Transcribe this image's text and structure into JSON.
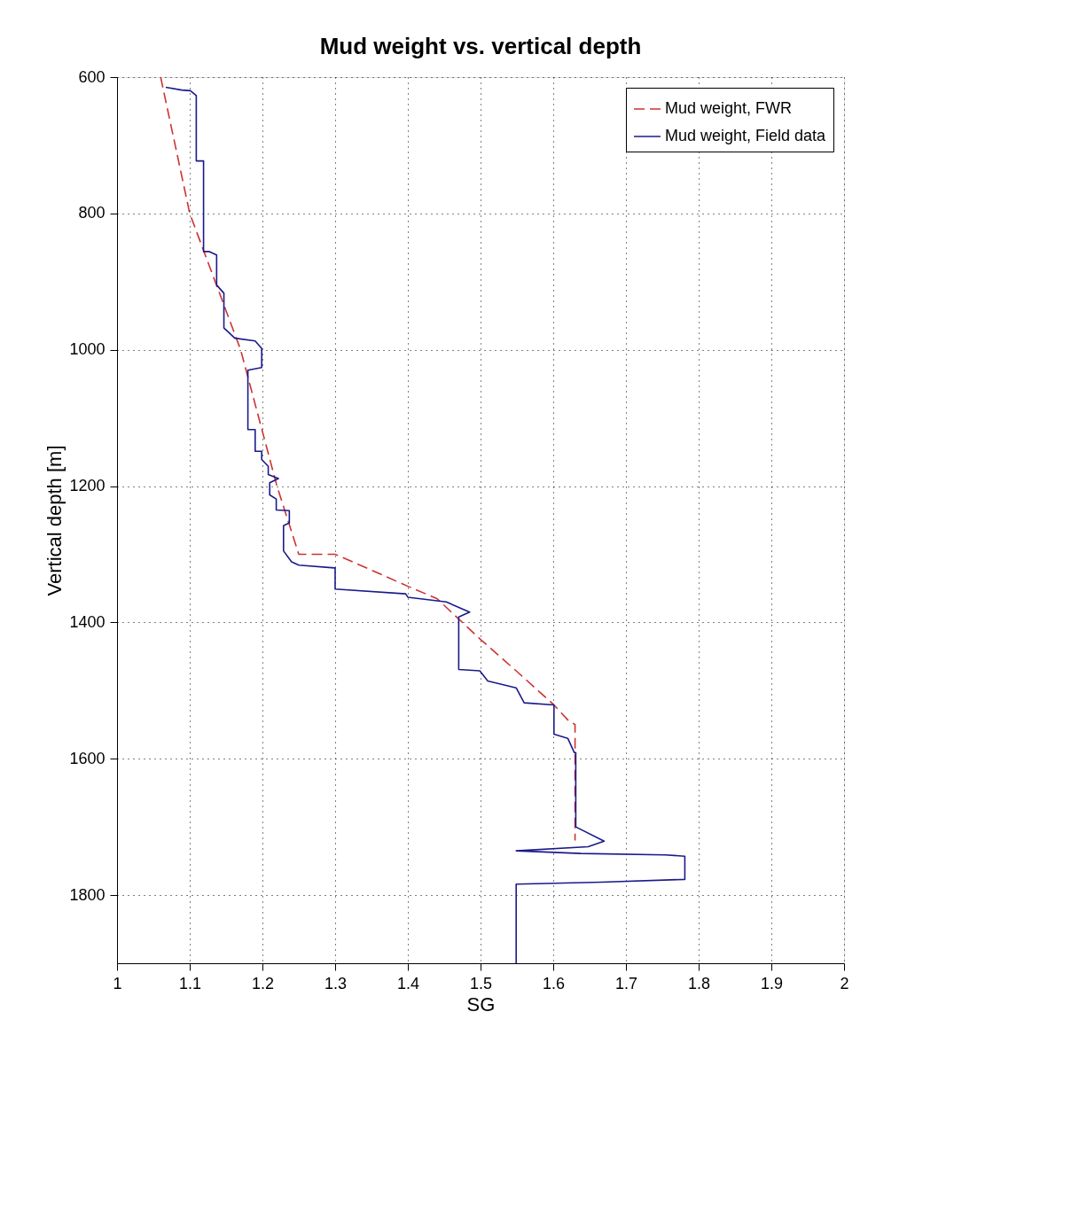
{
  "chart_data": {
    "type": "line",
    "title": "Mud weight vs. vertical depth",
    "xlabel": "SG",
    "ylabel": "Vertical depth [m]",
    "xlim": [
      1,
      2
    ],
    "xticks": [
      1,
      1.1,
      1.2,
      1.3,
      1.4,
      1.5,
      1.6,
      1.7,
      1.8,
      1.9,
      2
    ],
    "ylim": [
      1900,
      600
    ],
    "yticks": [
      600,
      800,
      1000,
      1200,
      1400,
      1600,
      1800
    ],
    "grid": true,
    "legend": "top right",
    "series": [
      {
        "name": "Mud weight, FWR",
        "color": "#cc3333",
        "line_style": "dashed",
        "x": [
          1.06,
          1.1,
          1.17,
          1.22,
          1.25,
          1.3,
          1.36,
          1.4,
          1.44,
          1.5,
          1.55,
          1.6,
          1.62,
          1.63,
          1.63
        ],
        "values": [
          600,
          800,
          1000,
          1200,
          1300,
          1300,
          1328,
          1347,
          1365,
          1425,
          1472,
          1520,
          1543,
          1550,
          1720
        ]
      },
      {
        "name": "Mud weight, Field data",
        "color": "#1a1a8c",
        "line_style": "solid",
        "x": [
          1.067,
          1.089,
          1.101,
          1.109,
          1.109,
          1.119,
          1.119,
          1.127,
          1.137,
          1.137,
          1.147,
          1.147,
          1.162,
          1.19,
          1.199,
          1.199,
          1.18,
          1.18,
          1.19,
          1.19,
          1.199,
          1.199,
          1.208,
          1.208,
          1.222,
          1.21,
          1.21,
          1.219,
          1.219,
          1.237,
          1.237,
          1.229,
          1.229,
          1.24,
          1.25,
          1.299,
          1.3,
          1.3,
          1.397,
          1.4,
          1.453,
          1.485,
          1.47,
          1.47,
          1.499,
          1.51,
          1.549,
          1.56,
          1.601,
          1.601,
          1.62,
          1.629,
          1.631,
          1.631,
          1.67,
          1.648,
          1.549,
          1.638,
          1.754,
          1.781,
          1.781,
          1.666,
          1.549,
          1.549
        ],
        "values": [
          615,
          619,
          620,
          627,
          723,
          723,
          856,
          856,
          861,
          905,
          917,
          968,
          983,
          987,
          998,
          1026,
          1030,
          1117,
          1117,
          1149,
          1149,
          1161,
          1171,
          1183,
          1189,
          1195,
          1213,
          1219,
          1235,
          1236,
          1254,
          1258,
          1295,
          1311,
          1316,
          1320,
          1320,
          1351,
          1358,
          1363,
          1370,
          1385,
          1392,
          1469,
          1471,
          1486,
          1496,
          1518,
          1521,
          1564,
          1570,
          1591,
          1591,
          1700,
          1721,
          1729,
          1735,
          1739,
          1741,
          1743,
          1777,
          1781,
          1784,
          1900
        ]
      }
    ]
  }
}
